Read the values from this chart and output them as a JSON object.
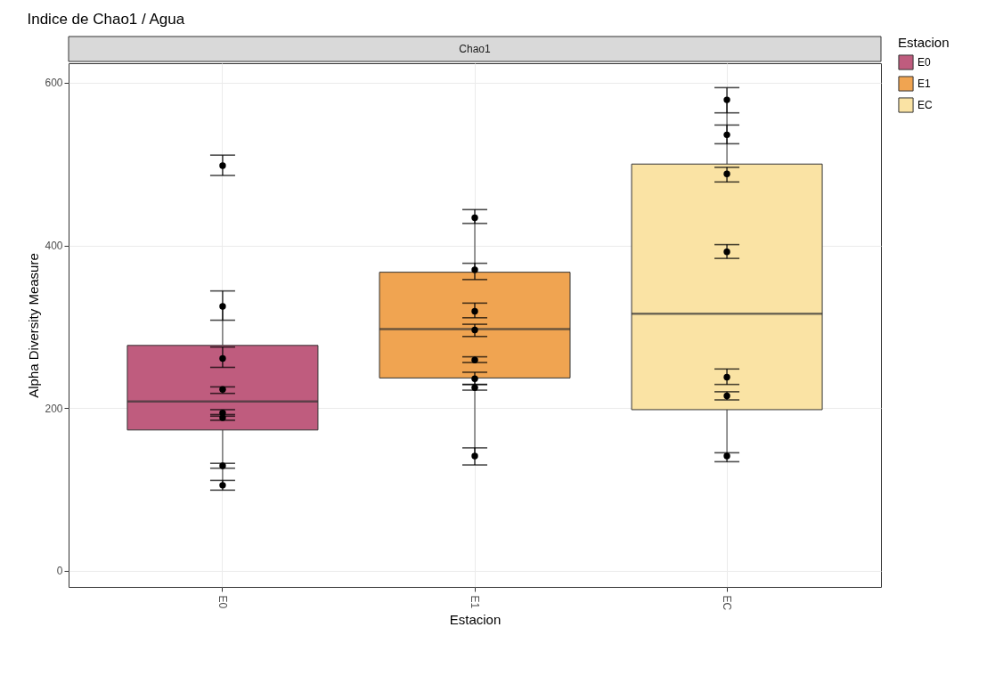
{
  "chart_data": {
    "type": "box",
    "title": "Indice de Chao1 / Agua",
    "xlabel": "Estacion",
    "ylabel": "Alpha Diversity Measure",
    "legend_title": "Estacion",
    "legend": "right",
    "grid": true,
    "annotations": [
      "Chao1"
    ],
    "categories": [
      "E0",
      "E1",
      "EC"
    ],
    "ylim": [
      -20,
      624
    ],
    "yticks": [
      0,
      200,
      400,
      600
    ],
    "series": [
      {
        "type": "box",
        "name": "E0",
        "color": "#bf5c7e",
        "boxes": [
          {
            "low": 105,
            "q1": 173,
            "median": 208,
            "q3": 277,
            "high": 325
          },
          null,
          null
        ]
      },
      {
        "type": "box",
        "name": "E1",
        "color": "#f0a451",
        "boxes": [
          null,
          {
            "low": 141,
            "q1": 237,
            "median": 297,
            "q3": 367,
            "high": 434
          },
          null
        ]
      },
      {
        "type": "box",
        "name": "EC",
        "color": "#fae3a4",
        "boxes": [
          null,
          null,
          {
            "low": 141,
            "q1": 198,
            "median": 316,
            "q3": 500,
            "high": 579
          }
        ]
      },
      {
        "type": "scatter",
        "color": "#000000",
        "x": [
          "E0",
          "E0",
          "E0",
          "E0",
          "E0",
          "E0",
          "E0",
          "E0",
          "E1",
          "E1",
          "E1",
          "E1",
          "E1",
          "E1",
          "E1",
          "E1",
          "EC",
          "EC",
          "EC",
          "EC",
          "EC",
          "EC",
          "EC"
        ],
        "values": [
          498,
          325,
          261,
          223,
          194,
          188,
          129,
          105,
          434,
          370,
          319,
          296,
          259,
          236,
          225,
          141,
          579,
          536,
          488,
          392,
          238,
          215,
          141
        ],
        "errors": [
          [
            486,
            511
          ],
          [
            308,
            344
          ],
          [
            250,
            275
          ],
          [
            218,
            226
          ],
          [
            190,
            198
          ],
          [
            185,
            192
          ],
          [
            126,
            132
          ],
          [
            99,
            111
          ],
          [
            427,
            444
          ],
          [
            358,
            378
          ],
          [
            311,
            329
          ],
          [
            288,
            303
          ],
          [
            256,
            263
          ],
          [
            229,
            244
          ],
          [
            222,
            229
          ],
          [
            130,
            151
          ],
          [
            563,
            594
          ],
          [
            525,
            548
          ],
          [
            478,
            496
          ],
          [
            384,
            401
          ],
          [
            229,
            248
          ],
          [
            210,
            220
          ],
          [
            134,
            145
          ]
        ]
      }
    ]
  }
}
